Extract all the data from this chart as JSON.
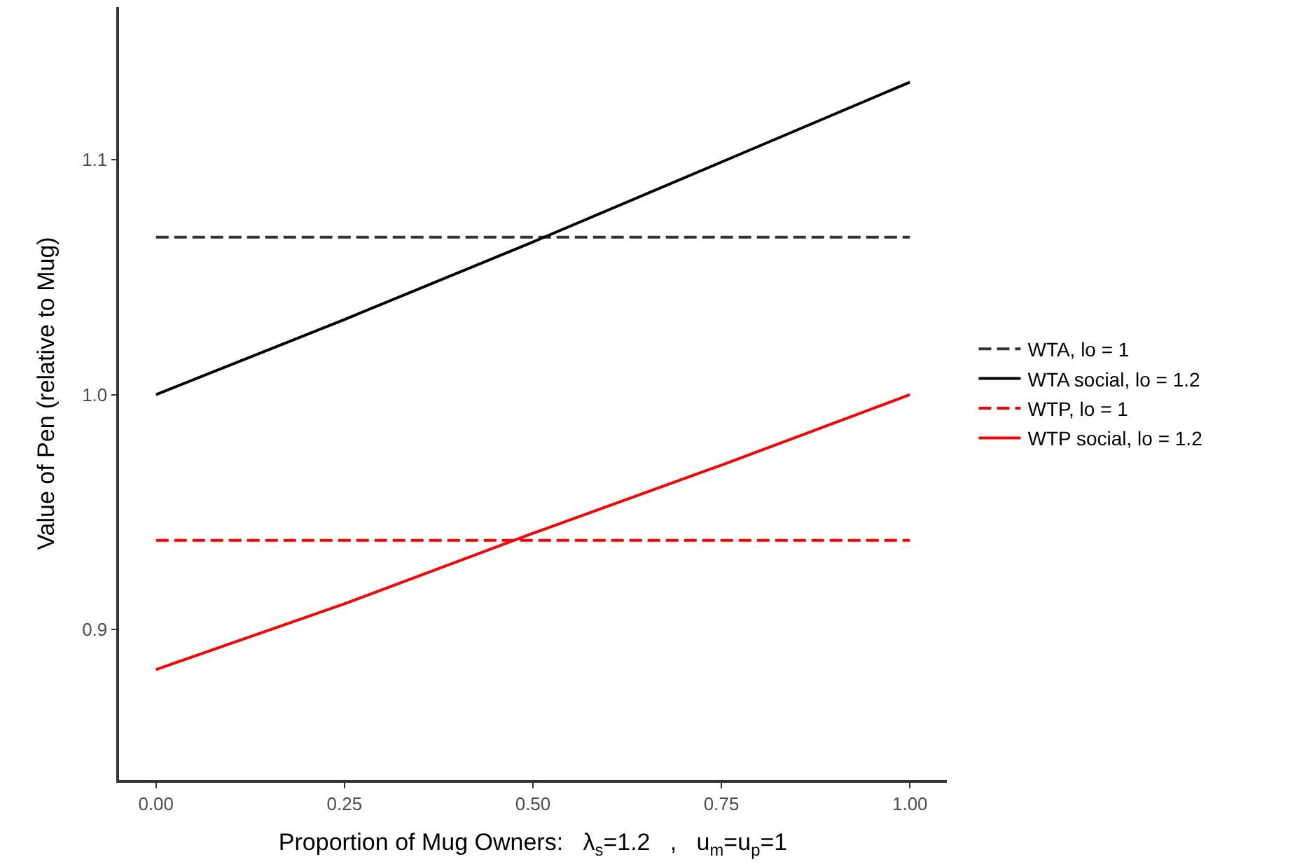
{
  "chart_data": {
    "type": "line",
    "xlabel": "Proportion of Mug Owners:   λ$_{s}$=1.2   ,   u$_{m}$=u$_{p}$=1",
    "ylabel": "Value of Pen (relative to Mug)",
    "x": [
      0,
      0.25,
      0.5,
      0.75,
      1
    ],
    "series": [
      {
        "name": "WTA, lo = 1",
        "color": "#333333",
        "line_style": "dashed",
        "values": [
          1.067,
          1.067,
          1.067,
          1.067,
          1.067
        ]
      },
      {
        "name": "WTA social, lo = 1.2",
        "color": "#000000",
        "line_style": "solid",
        "values": [
          1.0,
          1.032,
          1.065,
          1.099,
          1.133
        ]
      },
      {
        "name": "WTP, lo = 1",
        "color": "#ff0000",
        "line_style": "dashed",
        "values": [
          0.938,
          0.938,
          0.938,
          0.938,
          0.938
        ]
      },
      {
        "name": "WTP social, lo = 1.2",
        "color": "#ff0000",
        "line_style": "solid",
        "values": [
          0.883,
          0.911,
          0.941,
          0.97,
          1.0
        ]
      }
    ],
    "xlim": [
      -0.049,
      1.049
    ],
    "ylim": [
      0.836,
      1.165
    ],
    "xticks": [
      {
        "value": 0,
        "label": "0.00"
      },
      0.25,
      {
        "value": 0.5,
        "label": "0.50"
      },
      0.75,
      {
        "value": 1,
        "label": "1.00"
      }
    ],
    "yticks": [
      0.9,
      {
        "value": 1,
        "label": "1.0"
      },
      1.1
    ],
    "grid": false,
    "legend": "right",
    "marker": "none"
  }
}
